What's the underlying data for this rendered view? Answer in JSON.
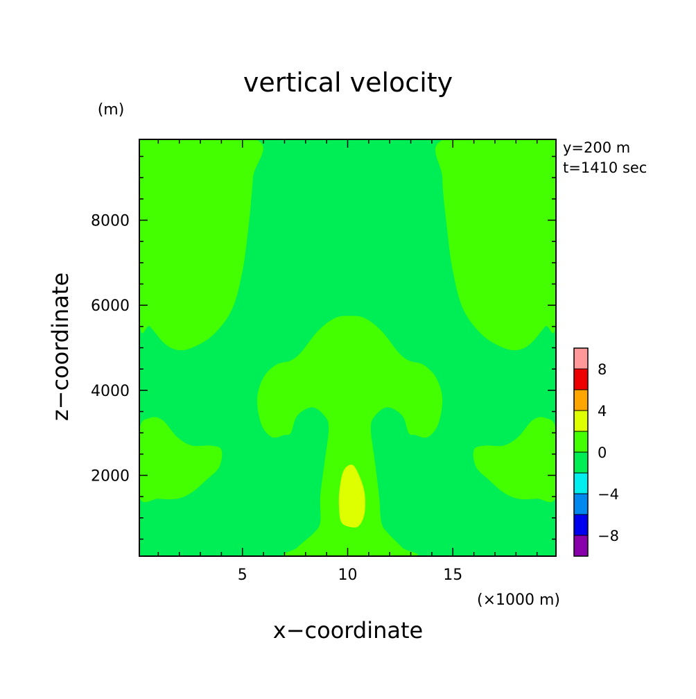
{
  "chart_data": {
    "type": "heatmap",
    "title": "vertical velocity",
    "xlabel": "x−coordinate",
    "ylabel": "z−coordinate",
    "x_unit": "(×1000 m)",
    "y_unit": "(m)",
    "annotations": [
      "y=200 m",
      "t=1410 sec"
    ],
    "xlim": [
      0.1,
      19.9
    ],
    "ylim": [
      100,
      9900
    ],
    "x_ticks": [
      5,
      10,
      15
    ],
    "y_ticks": [
      2000,
      4000,
      6000,
      8000
    ],
    "colorbar": {
      "levels": [
        -10,
        -8,
        -6,
        -4,
        -2,
        0,
        2,
        4,
        6,
        8,
        10
      ],
      "colors": [
        "#8800aa",
        "#0000ee",
        "#0088ee",
        "#00eeee",
        "#00ee55",
        "#44ff00",
        "#ddff00",
        "#ffa500",
        "#ee0000",
        "#ff9999"
      ],
      "tick_labels": [
        "8",
        "4",
        "0",
        "−4",
        "−8"
      ],
      "tick_values": [
        8,
        4,
        0,
        -4,
        -8
      ]
    },
    "regions": [
      {
        "name": "top-left weak updraft",
        "range": [
          0,
          2
        ],
        "color": "#44ff00",
        "outline": [
          [
            0.1,
            5700
          ],
          [
            0.6,
            5500
          ],
          [
            1.3,
            5100
          ],
          [
            1.9,
            4950
          ],
          [
            2.6,
            5000
          ],
          [
            3.6,
            5300
          ],
          [
            4.5,
            5900
          ],
          [
            5.0,
            6800
          ],
          [
            5.3,
            7900
          ],
          [
            5.5,
            9000
          ],
          [
            5.6,
            9900
          ],
          [
            0.1,
            9900
          ]
        ]
      },
      {
        "name": "top-right weak updraft",
        "range": [
          0,
          2
        ],
        "color": "#44ff00",
        "outline": [
          [
            14.6,
            9900
          ],
          [
            14.5,
            9000
          ],
          [
            14.7,
            7900
          ],
          [
            15.0,
            6800
          ],
          [
            15.5,
            5900
          ],
          [
            16.4,
            5300
          ],
          [
            17.4,
            5000
          ],
          [
            18.1,
            4950
          ],
          [
            18.7,
            5100
          ],
          [
            19.4,
            5500
          ],
          [
            19.9,
            5700
          ],
          [
            19.9,
            9900
          ]
        ]
      },
      {
        "name": "central plume",
        "range": [
          0,
          2
        ],
        "color": "#44ff00",
        "outline": [
          [
            7.3,
            100
          ],
          [
            7.6,
            300
          ],
          [
            8.4,
            650
          ],
          [
            8.7,
            900
          ],
          [
            8.7,
            1500
          ],
          [
            8.9,
            2300
          ],
          [
            9.1,
            3100
          ],
          [
            8.9,
            3400
          ],
          [
            8.3,
            3600
          ],
          [
            7.6,
            3400
          ],
          [
            7.3,
            3000
          ],
          [
            7.0,
            2950
          ],
          [
            6.4,
            2900
          ],
          [
            5.9,
            3200
          ],
          [
            5.7,
            3800
          ],
          [
            6.0,
            4300
          ],
          [
            6.6,
            4600
          ],
          [
            7.3,
            4700
          ],
          [
            7.8,
            4900
          ],
          [
            8.6,
            5400
          ],
          [
            9.4,
            5700
          ],
          [
            10.1,
            5750
          ],
          [
            10.8,
            5700
          ],
          [
            11.6,
            5400
          ],
          [
            12.4,
            4900
          ],
          [
            12.9,
            4700
          ],
          [
            13.6,
            4600
          ],
          [
            14.2,
            4300
          ],
          [
            14.5,
            3800
          ],
          [
            14.3,
            3200
          ],
          [
            13.8,
            2900
          ],
          [
            13.2,
            2950
          ],
          [
            12.9,
            3000
          ],
          [
            12.6,
            3400
          ],
          [
            11.9,
            3600
          ],
          [
            11.3,
            3400
          ],
          [
            11.1,
            3100
          ],
          [
            11.3,
            2300
          ],
          [
            11.5,
            1500
          ],
          [
            11.6,
            900
          ],
          [
            11.9,
            650
          ],
          [
            12.6,
            300
          ],
          [
            13.0,
            100
          ]
        ]
      },
      {
        "name": "lower-left weak updraft",
        "range": [
          0,
          2
        ],
        "color": "#44ff00",
        "outline": [
          [
            0.1,
            1500
          ],
          [
            1.0,
            1450
          ],
          [
            1.9,
            1450
          ],
          [
            2.6,
            1600
          ],
          [
            3.3,
            1900
          ],
          [
            3.9,
            2200
          ],
          [
            4.0,
            2600
          ],
          [
            3.5,
            2700
          ],
          [
            2.6,
            2700
          ],
          [
            1.9,
            2900
          ],
          [
            1.2,
            3300
          ],
          [
            0.6,
            3350
          ],
          [
            0.1,
            3050
          ]
        ]
      },
      {
        "name": "lower-right weak updraft",
        "range": [
          0,
          2
        ],
        "color": "#44ff00",
        "outline": [
          [
            19.9,
            1500
          ],
          [
            19.0,
            1450
          ],
          [
            18.1,
            1450
          ],
          [
            17.4,
            1600
          ],
          [
            16.7,
            1900
          ],
          [
            16.1,
            2200
          ],
          [
            16.0,
            2600
          ],
          [
            16.5,
            2700
          ],
          [
            17.4,
            2700
          ],
          [
            18.1,
            2900
          ],
          [
            18.8,
            3300
          ],
          [
            19.4,
            3350
          ],
          [
            19.9,
            3050
          ]
        ]
      },
      {
        "name": "core updraft",
        "range": [
          2,
          4
        ],
        "color": "#ddff00",
        "outline": [
          [
            9.6,
            1150
          ],
          [
            9.6,
            1600
          ],
          [
            9.8,
            2100
          ],
          [
            10.2,
            2250
          ],
          [
            10.5,
            2050
          ],
          [
            10.8,
            1600
          ],
          [
            10.8,
            1100
          ],
          [
            10.5,
            800
          ],
          [
            10.0,
            800
          ],
          [
            9.7,
            900
          ]
        ]
      }
    ],
    "background": {
      "range": [
        -2,
        0
      ],
      "color": "#00ee55"
    }
  }
}
